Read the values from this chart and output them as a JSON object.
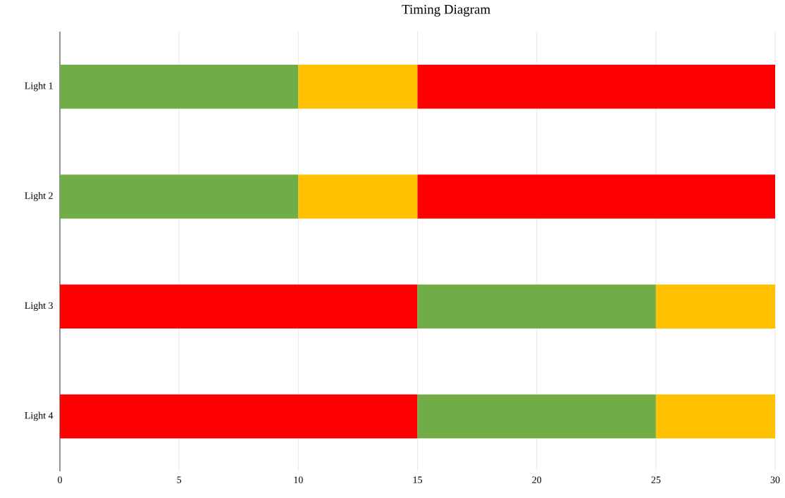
{
  "chart_data": {
    "type": "bar",
    "title": "Timing Diagram",
    "orientation": "horizontal",
    "stacked": true,
    "categories": [
      "Light 1",
      "Light 2",
      "Light 3",
      "Light 4"
    ],
    "series": [
      {
        "values": [
          10,
          10,
          15,
          15
        ],
        "colors": [
          "#70ad47",
          "#70ad47",
          "#ff0000",
          "#ff0000"
        ]
      },
      {
        "values": [
          5,
          5,
          10,
          10
        ],
        "colors": [
          "#ffc000",
          "#ffc000",
          "#70ad47",
          "#70ad47"
        ]
      },
      {
        "values": [
          15,
          15,
          5,
          5
        ],
        "colors": [
          "#ff0000",
          "#ff0000",
          "#ffc000",
          "#ffc000"
        ]
      }
    ],
    "xlim": [
      0,
      30
    ],
    "xticks": [
      0,
      5,
      10,
      15,
      20,
      25,
      30
    ],
    "grid": "x"
  }
}
